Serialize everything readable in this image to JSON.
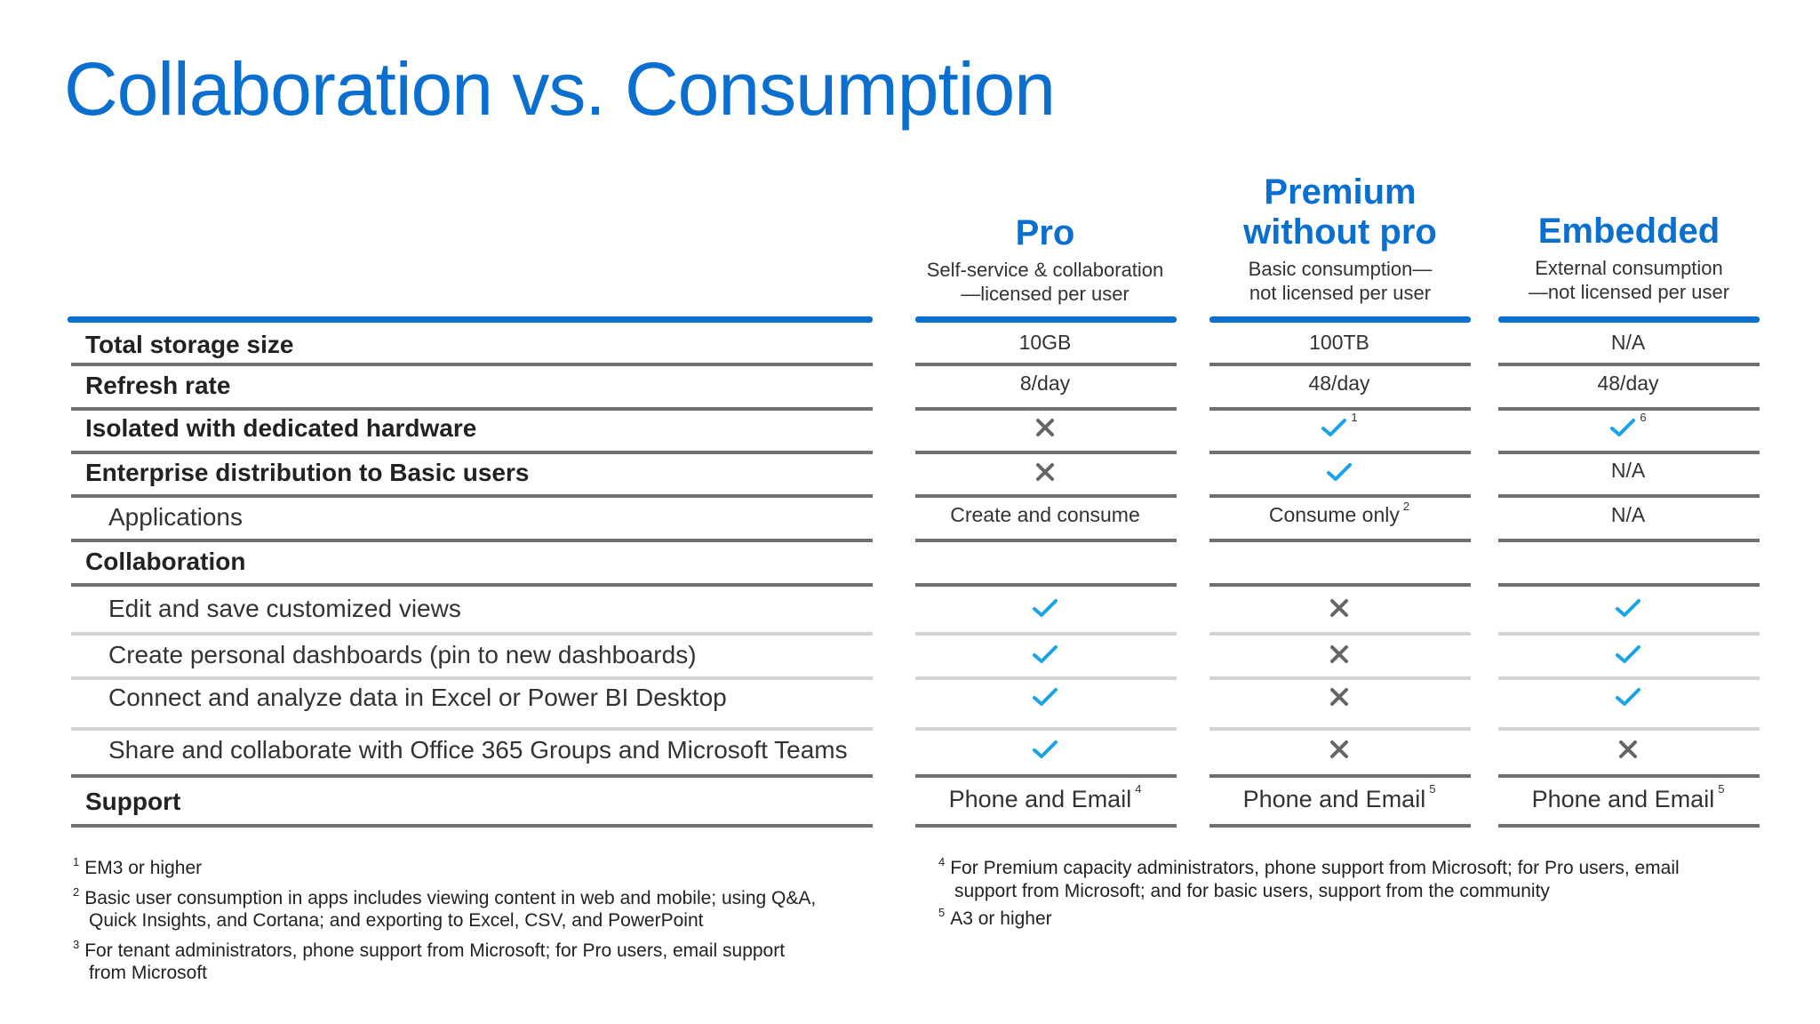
{
  "title": "Collaboration vs. Consumption",
  "columns": [
    {
      "name": "Pro",
      "desc1": "Self-service & collaboration",
      "desc2": "—licensed per user"
    },
    {
      "name1": "Premium",
      "name2": "without pro",
      "desc1": "Basic consumption—",
      "desc2": "not licensed per user"
    },
    {
      "name": "Embedded",
      "desc1": "External consumption",
      "desc2": "—not licensed per user"
    }
  ],
  "rows": [
    {
      "label": "Total storage size",
      "cells": [
        "10GB",
        "100TB",
        "N/A"
      ]
    },
    {
      "label": "Refresh rate",
      "cells": [
        "8/day",
        "48/day",
        "48/day"
      ]
    },
    {
      "label": "Isolated with dedicated hardware",
      "cells": [
        "cross",
        "check",
        "check"
      ],
      "sups": [
        "",
        "1",
        "6"
      ]
    },
    {
      "label": "Enterprise distribution to Basic users",
      "cells": [
        "cross",
        "check",
        "N/A"
      ]
    },
    {
      "label": "Applications",
      "cells": [
        "Create and consume",
        "Consume only",
        "N/A"
      ],
      "sups": [
        "",
        "2",
        ""
      ]
    },
    {
      "label": "Collaboration",
      "cells": [
        "",
        "",
        ""
      ]
    },
    {
      "label": "Edit and save customized views",
      "cells": [
        "check",
        "cross",
        "check"
      ]
    },
    {
      "label": "Create personal dashboards (pin to new dashboards)",
      "cells": [
        "check",
        "cross",
        "check"
      ]
    },
    {
      "label": "Connect and analyze data in Excel or Power BI Desktop",
      "cells": [
        "check",
        "cross",
        "check"
      ]
    },
    {
      "label": "Share and collaborate with Office 365 Groups and Microsoft Teams",
      "cells": [
        "check",
        "cross",
        "cross"
      ]
    },
    {
      "label": "Support",
      "cells": [
        "Phone and Email",
        "Phone and Email",
        "Phone and Email"
      ],
      "sups": [
        "4",
        "5",
        "5"
      ]
    }
  ],
  "footnotes_left": [
    {
      "num": "1",
      "text": "EM3 or higher"
    },
    {
      "num": "2",
      "line1": "Basic user consumption in apps includes viewing content in web and mobile; using Q&A,",
      "line2": "Quick Insights, and Cortana; and exporting to Excel, CSV, and PowerPoint"
    },
    {
      "num": "3",
      "line1": "For tenant administrators, phone support from Microsoft; for Pro users, email support",
      "line2": "from Microsoft"
    }
  ],
  "footnotes_right": [
    {
      "num": "4",
      "line1": "For Premium capacity administrators, phone support from Microsoft; for Pro users, email",
      "line2": "support from Microsoft; and for basic users, support from the community"
    },
    {
      "num": "5",
      "text": "A3 or higher"
    }
  ],
  "colors": {
    "accent": "#0a6fcf",
    "check": "#1aa3e8",
    "cross": "#666666",
    "rule": "#707070",
    "rule_light": "#d3d3d3"
  }
}
